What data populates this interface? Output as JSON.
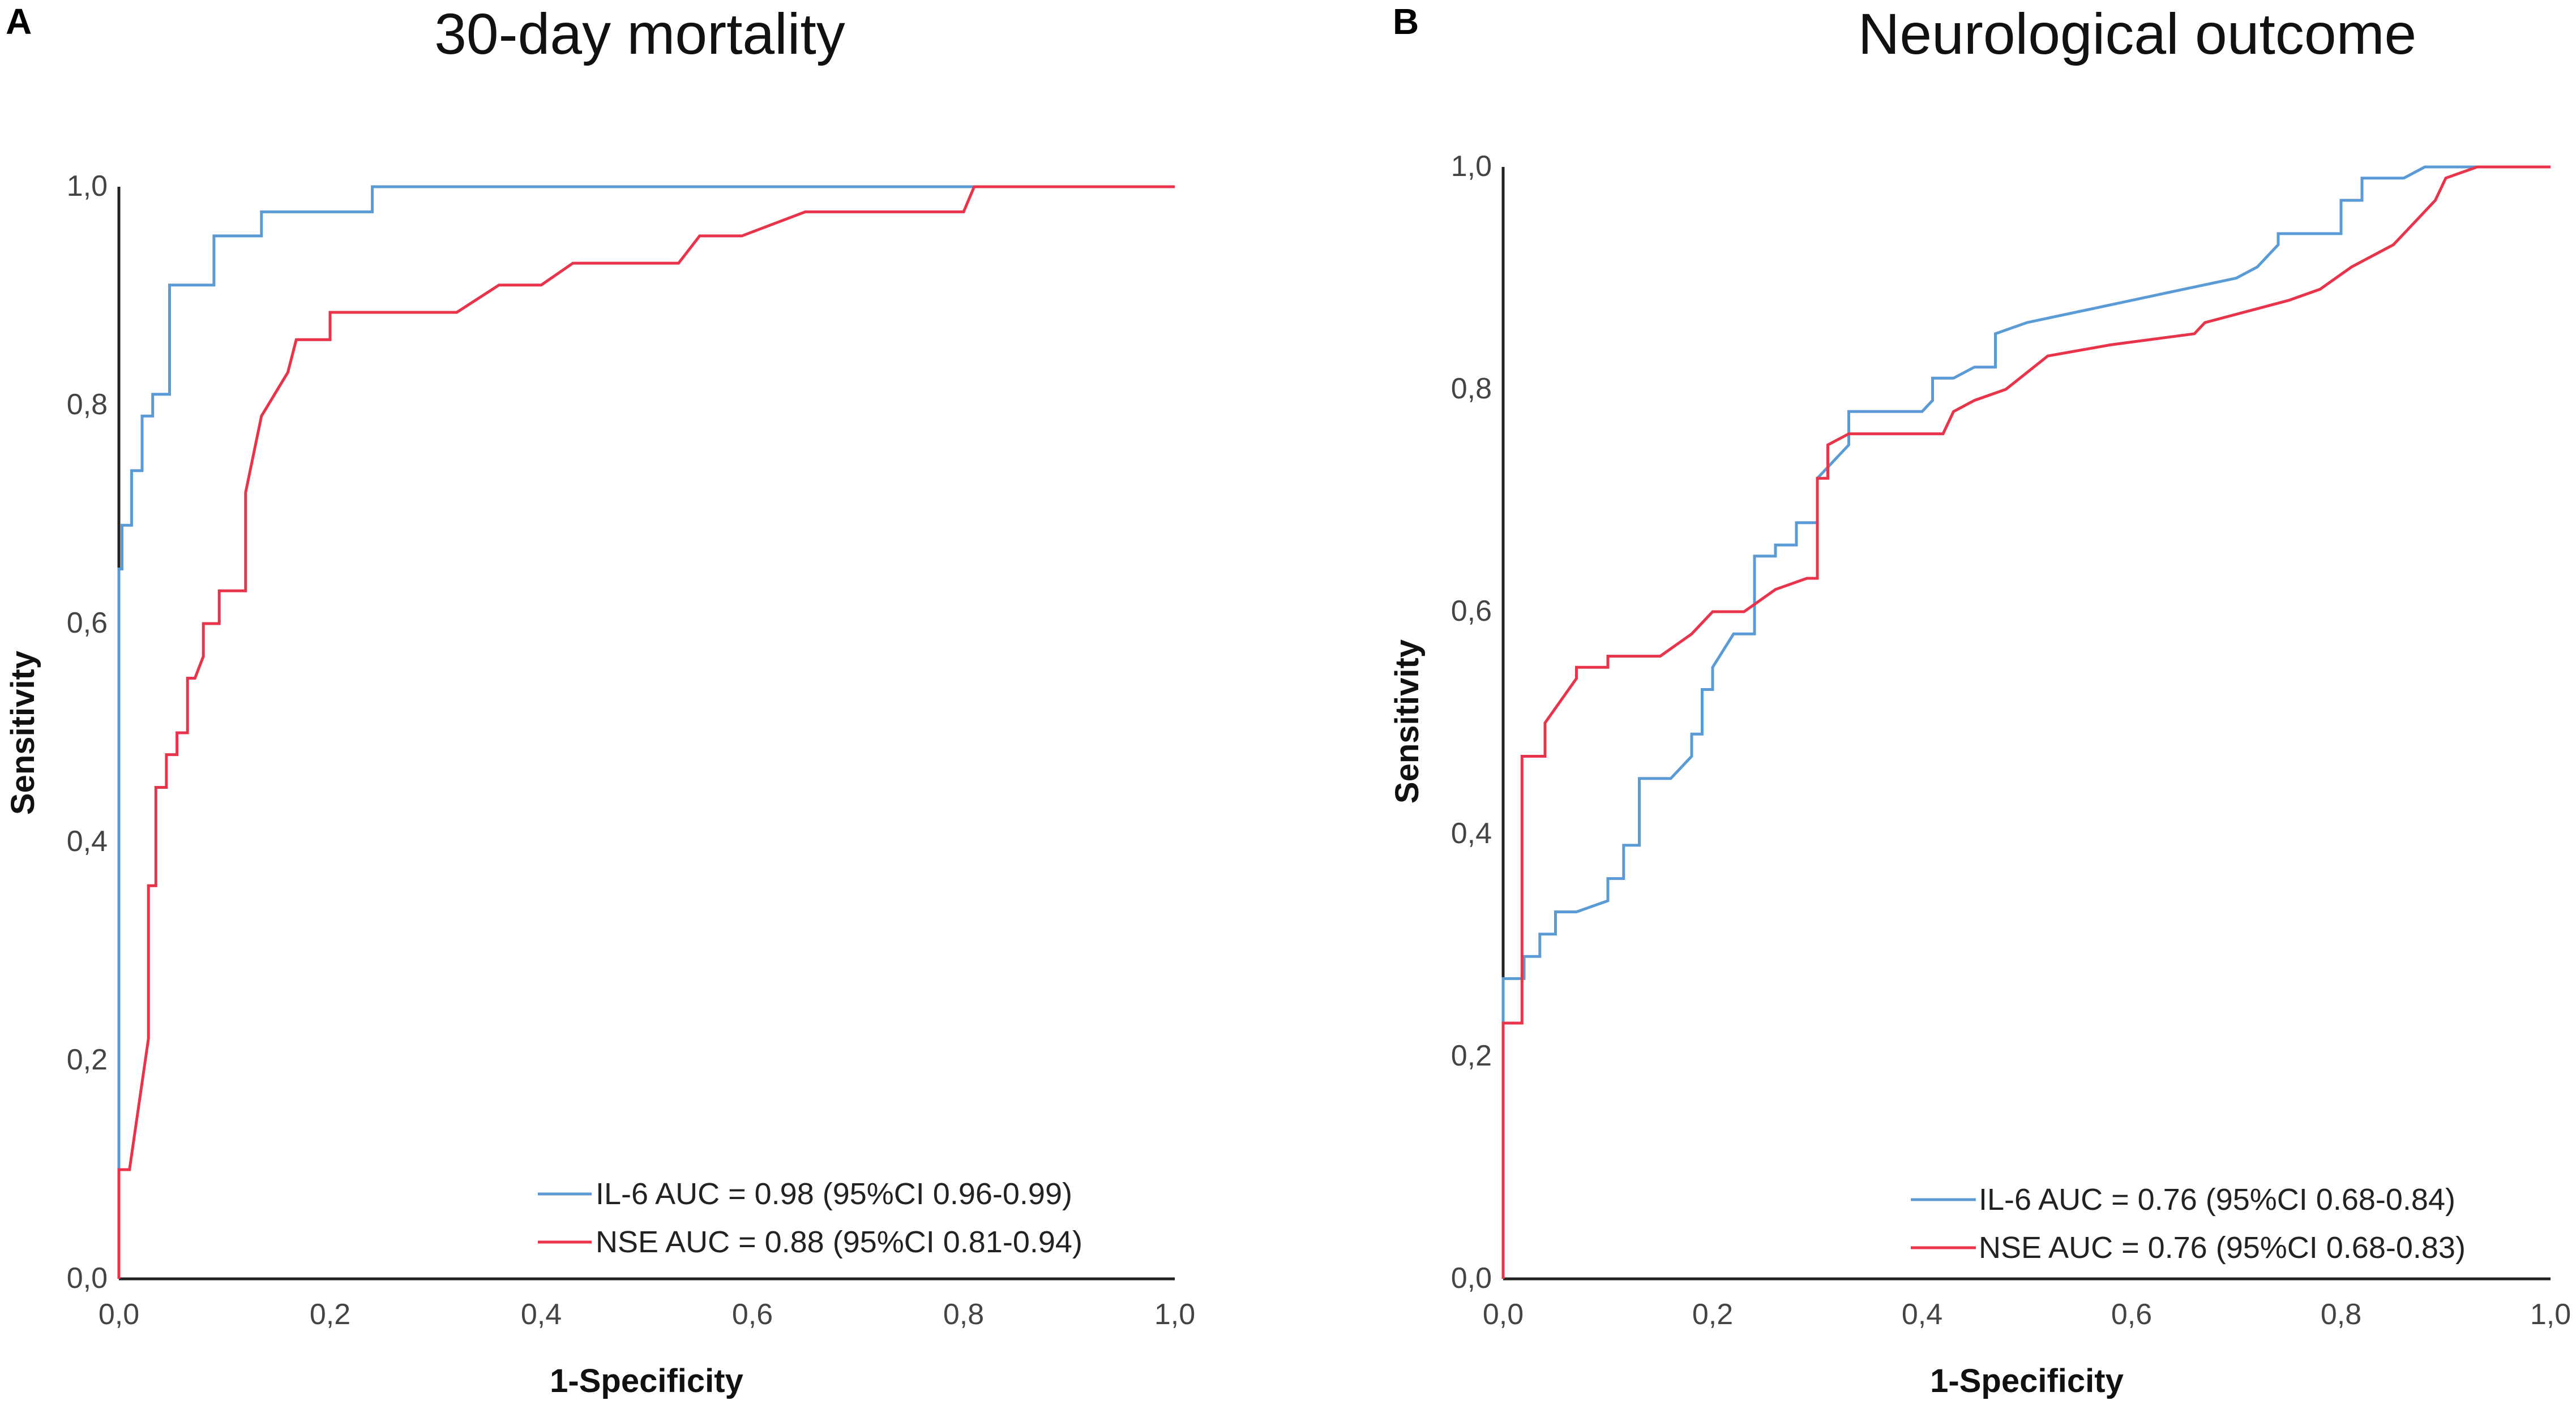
{
  "chart_data": [
    {
      "type": "line",
      "panel": "A",
      "title": "30-day mortality",
      "xlabel": "1-Specificity",
      "ylabel": "Sensitivity",
      "xlim": [
        0,
        1
      ],
      "ylim": [
        0,
        1
      ],
      "xticks": [
        "0,0",
        "0,2",
        "0,4",
        "0,6",
        "0,8",
        "1,0"
      ],
      "yticks": [
        "0,0",
        "0,2",
        "0,4",
        "0,6",
        "0,8",
        "1,0"
      ],
      "grid": false,
      "legend_position": "bottom-right",
      "colors": {
        "il6": "#5b9bd5",
        "nse": "#e8334a"
      },
      "series": [
        {
          "name": "IL-6 AUC = 0.98 (95%CI 0.96-0.99)",
          "key": "il6",
          "x": [
            0,
            0,
            0.003,
            0.003,
            0.012,
            0.012,
            0.022,
            0.022,
            0.032,
            0.032,
            0.048,
            0.048,
            0.058,
            0.058,
            0.09,
            0.09,
            0.135,
            0.135,
            0.24,
            0.24,
            0.8,
            1.0
          ],
          "y": [
            0,
            0.65,
            0.65,
            0.69,
            0.69,
            0.74,
            0.74,
            0.79,
            0.79,
            0.81,
            0.81,
            0.91,
            0.91,
            0.91,
            0.91,
            0.955,
            0.955,
            0.977,
            0.977,
            1.0,
            1.0,
            1.0
          ]
        },
        {
          "name": "NSE AUC = 0.88 (95%CI 0.81-0.94)",
          "key": "nse",
          "x": [
            0,
            0,
            0.01,
            0.028,
            0.028,
            0.035,
            0.035,
            0.045,
            0.045,
            0.055,
            0.055,
            0.065,
            0.065,
            0.072,
            0.08,
            0.08,
            0.095,
            0.095,
            0.12,
            0.12,
            0.135,
            0.135,
            0.16,
            0.168,
            0.168,
            0.2,
            0.2,
            0.32,
            0.36,
            0.4,
            0.43,
            0.53,
            0.55,
            0.59,
            0.65,
            0.8,
            0.81,
            1.0
          ],
          "y": [
            0,
            0.1,
            0.1,
            0.22,
            0.36,
            0.36,
            0.45,
            0.45,
            0.48,
            0.48,
            0.5,
            0.5,
            0.55,
            0.55,
            0.57,
            0.6,
            0.6,
            0.63,
            0.63,
            0.72,
            0.79,
            0.79,
            0.83,
            0.86,
            0.86,
            0.86,
            0.885,
            0.885,
            0.91,
            0.91,
            0.93,
            0.93,
            0.955,
            0.955,
            0.977,
            0.977,
            1.0,
            1.0
          ]
        }
      ]
    },
    {
      "type": "line",
      "panel": "B",
      "title": "Neurological outcome",
      "xlabel": "1-Specificity",
      "ylabel": "Sensitivity",
      "xlim": [
        0,
        1
      ],
      "ylim": [
        0,
        1
      ],
      "xticks": [
        "0,0",
        "0,2",
        "0,4",
        "0,6",
        "0,8",
        "1,0"
      ],
      "yticks": [
        "0,0",
        "0,2",
        "0,4",
        "0,6",
        "0,8",
        "1,0"
      ],
      "grid": false,
      "legend_position": "bottom-right",
      "colors": {
        "il6": "#5b9bd5",
        "nse": "#e8334a"
      },
      "series": [
        {
          "name": "IL-6 AUC = 0.76 (95%CI 0.68-0.84)",
          "key": "il6",
          "x": [
            0,
            0,
            0.02,
            0.02,
            0.035,
            0.035,
            0.05,
            0.05,
            0.07,
            0.1,
            0.1,
            0.115,
            0.115,
            0.13,
            0.13,
            0.16,
            0.18,
            0.18,
            0.19,
            0.19,
            0.2,
            0.2,
            0.22,
            0.24,
            0.24,
            0.26,
            0.26,
            0.28,
            0.28,
            0.3,
            0.3,
            0.33,
            0.33,
            0.36,
            0.4,
            0.41,
            0.41,
            0.43,
            0.45,
            0.47,
            0.47,
            0.5,
            0.55,
            0.6,
            0.65,
            0.7,
            0.72,
            0.74,
            0.74,
            0.8,
            0.8,
            0.82,
            0.82,
            0.86,
            0.88,
            1.0
          ],
          "y": [
            0,
            0.27,
            0.27,
            0.29,
            0.29,
            0.31,
            0.31,
            0.33,
            0.33,
            0.34,
            0.36,
            0.36,
            0.39,
            0.39,
            0.45,
            0.45,
            0.47,
            0.49,
            0.49,
            0.53,
            0.53,
            0.55,
            0.58,
            0.58,
            0.65,
            0.65,
            0.66,
            0.66,
            0.68,
            0.68,
            0.72,
            0.75,
            0.78,
            0.78,
            0.78,
            0.79,
            0.81,
            0.81,
            0.82,
            0.82,
            0.85,
            0.86,
            0.87,
            0.88,
            0.89,
            0.9,
            0.91,
            0.93,
            0.94,
            0.94,
            0.97,
            0.97,
            0.99,
            0.99,
            1.0,
            1.0
          ]
        },
        {
          "name": "NSE AUC = 0.76 (95%CI 0.68-0.83)",
          "key": "nse",
          "x": [
            0,
            0,
            0.018,
            0.018,
            0.04,
            0.04,
            0.055,
            0.07,
            0.07,
            0.1,
            0.1,
            0.15,
            0.18,
            0.2,
            0.23,
            0.26,
            0.29,
            0.3,
            0.3,
            0.31,
            0.31,
            0.33,
            0.42,
            0.43,
            0.45,
            0.48,
            0.52,
            0.58,
            0.66,
            0.67,
            0.75,
            0.78,
            0.81,
            0.85,
            0.87,
            0.89,
            0.9,
            0.93,
            1.0
          ],
          "y": [
            0,
            0.23,
            0.23,
            0.47,
            0.47,
            0.5,
            0.52,
            0.54,
            0.55,
            0.55,
            0.56,
            0.56,
            0.58,
            0.6,
            0.6,
            0.62,
            0.63,
            0.63,
            0.72,
            0.72,
            0.75,
            0.76,
            0.76,
            0.78,
            0.79,
            0.8,
            0.83,
            0.84,
            0.85,
            0.86,
            0.88,
            0.89,
            0.91,
            0.93,
            0.95,
            0.97,
            0.99,
            1.0,
            1.0
          ]
        }
      ]
    }
  ]
}
